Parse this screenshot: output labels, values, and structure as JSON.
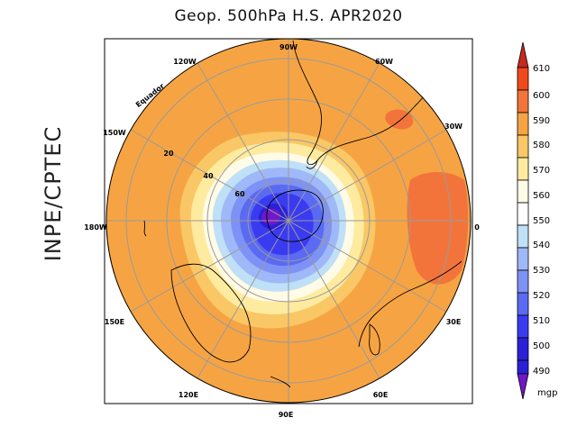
{
  "title": "Geop. 500hPa H.S. APR2020",
  "side_label": "INPE/CPTEC",
  "map": {
    "longitude_labels": {
      "top": "90W",
      "upper_left": "120W",
      "upper_right": "60W",
      "right_upper": "30W",
      "right": "0",
      "right_lower": "30E",
      "lower_right": "60E",
      "bottom": "90E",
      "lower_left": "120E",
      "left_lower": "150E",
      "left": "180W",
      "left_upper": "150W"
    },
    "latitude_labels": [
      "20",
      "40",
      "60"
    ],
    "equator_label": "Equador"
  },
  "colorbar": {
    "unit": "mgp",
    "levels": [
      "610",
      "600",
      "590",
      "580",
      "570",
      "560",
      "550",
      "540",
      "530",
      "520",
      "510",
      "500",
      "490"
    ],
    "colors": [
      "#c8281e",
      "#f04a1c",
      "#f2743a",
      "#f6a443",
      "#fac766",
      "#feeba0",
      "#fffbe6",
      "#bfe0f7",
      "#9fb8f8",
      "#7e92f6",
      "#5a6af3",
      "#3a3bf0",
      "#2b20d8",
      "#7018c8"
    ]
  }
}
